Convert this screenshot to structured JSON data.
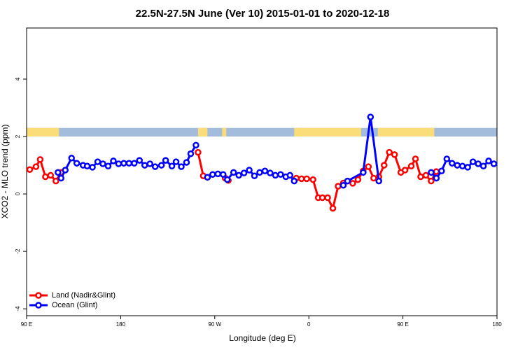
{
  "chart_data": {
    "type": "line",
    "title": "22.5N-27.5N June (Ver 10)   2015-01-01 to 2020-12-18",
    "x_label": "Longitude (deg E)",
    "y_label": "XCO2 - MLO trend (ppm)",
    "xlim": [
      90,
      540
    ],
    "ylim": [
      -4.24,
      5.78
    ],
    "xticks": [
      {
        "value": 90,
        "label": "90 E"
      },
      {
        "value": 180,
        "label": "180"
      },
      {
        "value": 270,
        "label": "90 W"
      },
      {
        "value": 360,
        "label": "0"
      },
      {
        "value": 450,
        "label": "90 E"
      },
      {
        "value": 540,
        "label": "180"
      }
    ],
    "yticks": [
      -4,
      -2,
      0,
      2,
      4
    ],
    "legend": "bottom-left",
    "strip": {
      "ylim": [
        2.0,
        2.3
      ],
      "land_color": "#fadc78",
      "ocean_color": "#a3bcdc",
      "land_spans": [
        [
          90,
          121
        ],
        [
          254,
          263
        ],
        [
          277,
          281
        ],
        [
          346,
          410
        ],
        [
          426,
          480
        ]
      ]
    },
    "series": [
      {
        "name": "Land (Nadir&Glint)",
        "color": "#ff0000",
        "x": [
          93,
          99,
          103,
          108,
          113,
          118,
          123,
          null,
          254,
          259,
          263,
          null,
          280,
          283,
          null,
          348,
          353,
          358,
          364,
          369,
          373,
          378,
          383,
          388,
          393,
          397,
          402,
          407,
          412,
          417,
          422,
          427,
          432,
          437,
          442,
          448,
          452,
          458,
          462,
          467,
          472,
          477,
          482
        ],
        "values": [
          0.85,
          0.95,
          1.2,
          0.6,
          0.65,
          0.45,
          0.75,
          null,
          1.45,
          0.63,
          0.58,
          null,
          0.55,
          0.47,
          null,
          0.55,
          0.53,
          0.53,
          0.5,
          -0.13,
          -0.13,
          -0.13,
          -0.5,
          0.27,
          0.38,
          0.45,
          0.37,
          0.5,
          0.8,
          0.95,
          0.55,
          0.6,
          1.0,
          1.45,
          1.37,
          0.75,
          0.83,
          0.97,
          1.22,
          0.6,
          0.65,
          0.45,
          0.78
        ]
      },
      {
        "name": "Ocean (Glint)",
        "color": "#0000ff",
        "x": [
          120,
          123,
          127,
          133,
          138,
          144,
          148,
          153,
          158,
          163,
          168,
          173,
          178,
          183,
          188,
          193,
          198,
          203,
          208,
          213,
          219,
          223,
          229,
          233,
          238,
          243,
          247,
          252,
          null,
          263,
          268,
          273,
          278,
          282,
          288,
          293,
          298,
          303,
          308,
          313,
          318,
          323,
          328,
          333,
          338,
          342,
          346,
          null,
          393,
          397,
          412,
          419,
          427,
          null,
          477,
          482,
          487,
          492,
          497,
          502,
          507,
          512,
          517,
          522,
          527,
          532,
          537
        ],
        "values": [
          0.75,
          0.55,
          0.83,
          1.25,
          1.07,
          1.0,
          0.97,
          0.93,
          1.12,
          1.05,
          0.97,
          1.15,
          1.05,
          1.07,
          1.07,
          1.07,
          1.17,
          1.0,
          1.05,
          0.95,
          1.0,
          1.17,
          0.97,
          1.12,
          0.95,
          1.1,
          1.4,
          1.7,
          null,
          0.58,
          0.68,
          0.7,
          0.68,
          0.5,
          0.75,
          0.65,
          0.73,
          0.83,
          0.63,
          0.75,
          0.8,
          0.73,
          0.65,
          0.68,
          0.6,
          0.65,
          0.45,
          null,
          0.3,
          0.45,
          0.75,
          2.68,
          0.45,
          null,
          0.75,
          0.55,
          0.8,
          1.22,
          1.07,
          1.0,
          0.97,
          0.93,
          1.12,
          1.05,
          0.97,
          1.15,
          1.05
        ]
      }
    ]
  }
}
